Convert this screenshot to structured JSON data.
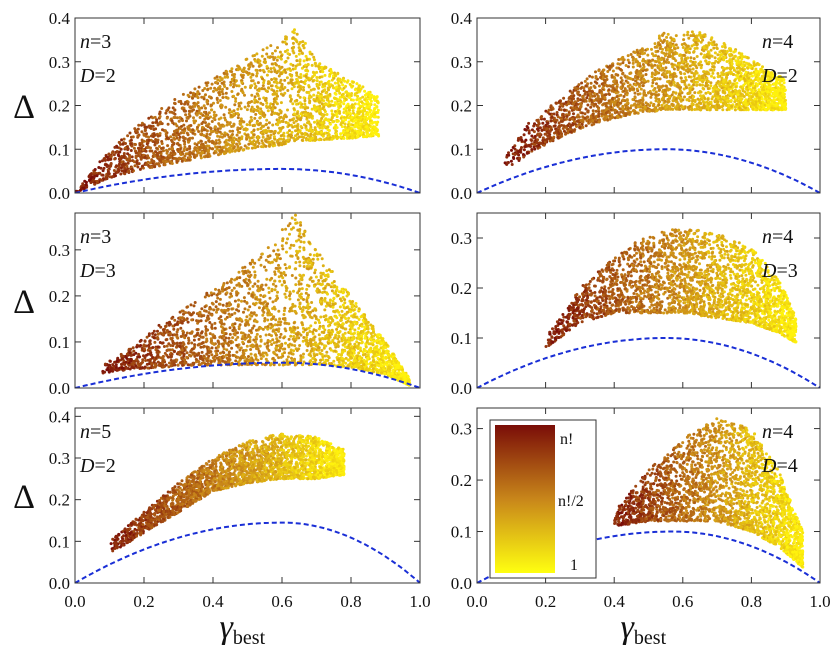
{
  "chart_data": [
    {
      "type": "scatter",
      "id": "p1",
      "n": "3",
      "D": "2",
      "label_pos": "left",
      "ylim": [
        0,
        0.4
      ],
      "yticks": [
        0.0,
        0.1,
        0.2,
        0.3,
        0.4
      ],
      "xlim": [
        0,
        1
      ],
      "xticks": [
        0.0,
        0.2,
        0.4,
        0.6,
        0.8,
        1.0
      ],
      "envelope": {
        "x": [
          0.0,
          0.1,
          0.2,
          0.3,
          0.4,
          0.5,
          0.6,
          0.64,
          0.7,
          0.8,
          0.88
        ],
        "upper": [
          0.0,
          0.1,
          0.17,
          0.22,
          0.26,
          0.31,
          0.35,
          0.38,
          0.3,
          0.26,
          0.22
        ],
        "lower": [
          0.0,
          0.035,
          0.055,
          0.07,
          0.085,
          0.1,
          0.11,
          0.12,
          0.12,
          0.125,
          0.13
        ]
      },
      "curve_peak": 0.055,
      "curve_peak_x": 0.6,
      "ylabel": "Δ"
    },
    {
      "type": "scatter",
      "id": "p2",
      "n": "4",
      "D": "2",
      "label_pos": "right",
      "ylim": [
        0,
        0.4
      ],
      "yticks": [
        0.0,
        0.1,
        0.2,
        0.3,
        0.4
      ],
      "xlim": [
        0,
        1
      ],
      "xticks": [
        0.0,
        0.2,
        0.4,
        0.6,
        0.8,
        1.0
      ],
      "envelope": {
        "x": [
          0.08,
          0.15,
          0.25,
          0.35,
          0.45,
          0.55,
          0.65,
          0.75,
          0.85,
          0.9
        ],
        "upper": [
          0.08,
          0.16,
          0.22,
          0.28,
          0.32,
          0.37,
          0.37,
          0.33,
          0.28,
          0.26
        ],
        "lower": [
          0.05,
          0.09,
          0.13,
          0.16,
          0.18,
          0.19,
          0.19,
          0.19,
          0.19,
          0.19
        ]
      },
      "curve_peak": 0.1,
      "curve_peak_x": 0.55,
      "ylabel": ""
    },
    {
      "type": "scatter",
      "id": "p3",
      "n": "3",
      "D": "3",
      "label_pos": "left",
      "ylim": [
        0,
        0.38
      ],
      "yticks": [
        0.0,
        0.1,
        0.2,
        0.3
      ],
      "xlim": [
        0,
        1
      ],
      "xticks": [
        0.0,
        0.2,
        0.4,
        0.6,
        0.8,
        1.0
      ],
      "envelope": {
        "x": [
          0.08,
          0.15,
          0.25,
          0.35,
          0.45,
          0.55,
          0.64,
          0.7,
          0.8,
          0.9,
          0.97
        ],
        "upper": [
          0.05,
          0.08,
          0.14,
          0.19,
          0.24,
          0.3,
          0.38,
          0.3,
          0.2,
          0.1,
          0.02
        ],
        "lower": [
          0.03,
          0.04,
          0.045,
          0.05,
          0.05,
          0.05,
          0.05,
          0.05,
          0.045,
          0.03,
          0.005
        ]
      },
      "curve_peak": 0.055,
      "curve_peak_x": 0.6,
      "ylabel": "Δ"
    },
    {
      "type": "scatter",
      "id": "p4",
      "n": "4",
      "D": "3",
      "label_pos": "right",
      "ylim": [
        0,
        0.35
      ],
      "yticks": [
        0.0,
        0.1,
        0.2,
        0.3
      ],
      "xlim": [
        0,
        1
      ],
      "xticks": [
        0.0,
        0.2,
        0.4,
        0.6,
        0.8,
        1.0
      ],
      "envelope": {
        "x": [
          0.2,
          0.3,
          0.4,
          0.5,
          0.6,
          0.7,
          0.8,
          0.88,
          0.93
        ],
        "upper": [
          0.1,
          0.2,
          0.26,
          0.31,
          0.32,
          0.31,
          0.28,
          0.22,
          0.14
        ],
        "lower": [
          0.08,
          0.13,
          0.15,
          0.15,
          0.15,
          0.14,
          0.13,
          0.11,
          0.09
        ]
      },
      "curve_peak": 0.1,
      "curve_peak_x": 0.55,
      "ylabel": ""
    },
    {
      "type": "scatter",
      "id": "p5",
      "n": "5",
      "D": "2",
      "label_pos": "left",
      "ylim": [
        0,
        0.42
      ],
      "yticks": [
        0.0,
        0.1,
        0.2,
        0.3,
        0.4
      ],
      "xlim": [
        0,
        1
      ],
      "xticks": [
        0.0,
        0.2,
        0.4,
        0.6,
        0.8,
        1.0
      ],
      "envelope": {
        "x": [
          0.1,
          0.2,
          0.3,
          0.4,
          0.5,
          0.6,
          0.7,
          0.78
        ],
        "upper": [
          0.1,
          0.17,
          0.24,
          0.3,
          0.34,
          0.36,
          0.35,
          0.32
        ],
        "lower": [
          0.07,
          0.12,
          0.17,
          0.22,
          0.24,
          0.25,
          0.25,
          0.26
        ]
      },
      "curve_peak": 0.145,
      "curve_peak_x": 0.6,
      "ylabel": "Δ"
    },
    {
      "type": "scatter",
      "id": "p6",
      "n": "4",
      "D": "4",
      "label_pos": "right",
      "ylim": [
        0,
        0.34
      ],
      "yticks": [
        0.0,
        0.1,
        0.2,
        0.3
      ],
      "xlim": [
        0,
        1
      ],
      "xticks": [
        0.0,
        0.2,
        0.4,
        0.6,
        0.8,
        1.0
      ],
      "envelope": {
        "x": [
          0.4,
          0.5,
          0.6,
          0.7,
          0.8,
          0.88,
          0.95
        ],
        "upper": [
          0.14,
          0.22,
          0.28,
          0.32,
          0.3,
          0.22,
          0.1
        ],
        "lower": [
          0.11,
          0.12,
          0.12,
          0.12,
          0.1,
          0.07,
          0.03
        ]
      },
      "curve_peak": 0.1,
      "curve_peak_x": 0.57,
      "ylabel": ""
    }
  ],
  "colorbar": {
    "top_label": "n!",
    "mid_label": "n!/2",
    "bottom_label": "1",
    "top_color": "#7a0d08",
    "bottom_color": "#ffff10"
  },
  "xlabel": {
    "main": "γ",
    "sub": "best"
  },
  "panel_label_n": "n",
  "panel_label_D": "D",
  "eq": "=",
  "colors": {
    "curve": "#1a2fd6",
    "dark": "#7a0d08",
    "mid": "#c8861a",
    "light": "#fff20d"
  }
}
